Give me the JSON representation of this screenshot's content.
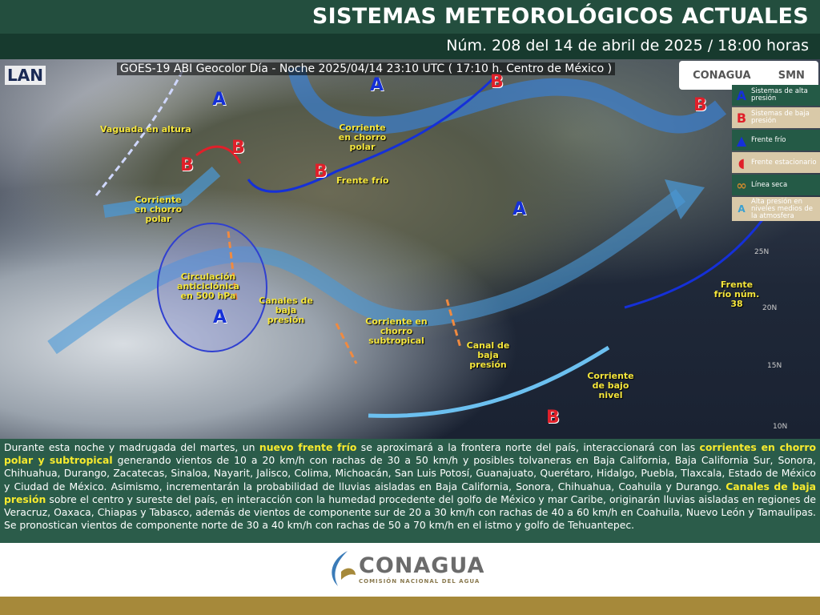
{
  "header": {
    "title": "SISTEMAS METEOROLÓGICOS ACTUALES",
    "subtitle": "Núm. 208 del 14 de abril de 2025 / 18:00 horas"
  },
  "map": {
    "caption": "GOES-19 ABI Geocolor Día - Noche 2025/04/14 23:10 UTC ( 17:10 h. Centro de México )",
    "source_logo": "LAN",
    "logos": [
      "CONAGUA",
      "SMN"
    ],
    "labels": {
      "vaguada": "Vaguada en altura",
      "chorro_polar_w": "Corriente en chorro polar",
      "chorro_polar_n": "Corriente en chorro polar",
      "frente_frio": "Frente frío",
      "circulacion": "Circulación anticiclónica en 500 hPa",
      "canales": "Canales de baja presión",
      "chorro_sub": "Corriente en chorro subtropical",
      "canal": "Canal de baja presión",
      "bajo_nivel": "Corriente de bajo nivel",
      "frente38": "Frente frío núm. 38"
    },
    "pressure": {
      "high": "A",
      "low": "B"
    },
    "latitudes": [
      "25N",
      "20N",
      "15N",
      "10N"
    ]
  },
  "legend": [
    {
      "icon": "A",
      "label": "Sistemas de alta presión"
    },
    {
      "icon": "B",
      "label": "Sistemas de baja presión"
    },
    {
      "icon": "cold-front",
      "label": "Frente frío"
    },
    {
      "icon": "stationary-front",
      "label": "Frente estacionario"
    },
    {
      "icon": "dry-line",
      "label": "Línea seca"
    },
    {
      "icon": "A",
      "label": "Alta presión en niveles medios de la atmosfera"
    }
  ],
  "text": {
    "p1": "Durante esta noche y madrugada del martes, un ",
    "h1": "nuevo frente frío",
    "p2": " se aproximará a la frontera norte del país, interaccionará con las ",
    "h2": "corrientes en chorro polar y subtropical",
    "p3": " generando vientos de 10 a 20 km/h con rachas de 30 a 50 km/h y posibles tolvaneras en Baja California, Baja California Sur, Sonora, Chihuahua, Durango, Zacatecas, Sinaloa, Nayarit, Jalisco, Colima, Michoacán, San Luis Potosí, Guanajuato, Querétaro, Hidalgo, Puebla, Tlaxcala, Estado de México y Ciudad de México. Asimismo, incrementarán la probabilidad de lluvias aisladas en Baja California, Sonora, Chihuahua, Coahuila y Durango. ",
    "h3": "Canales de baja presión",
    "p4": " sobre el centro y sureste del país, en interacción con la humedad procedente del golfo de México y mar Caribe, originarán lluvias aisladas en regiones de Veracruz, Oaxaca, Chiapas y Tabasco, además de vientos de componente sur de 20 a 30 km/h con rachas de 40 a 60 km/h en Coahuila, Nuevo León y Tamaulipas. Se pronostican vientos de componente norte de 30 a 40 km/h con rachas de 50 a 70 km/h en el istmo y golfo de Tehuantepec."
  },
  "footer": {
    "name": "CONAGUA",
    "sub": "COMISIÓN NACIONAL DEL AGUA"
  },
  "colors": {
    "header": "#234e3e",
    "text_bg": "#2b5c4a",
    "highlight": "#f7ea2e",
    "gold": "#a6893a",
    "high": "#1530d8",
    "low": "#e0202a"
  }
}
